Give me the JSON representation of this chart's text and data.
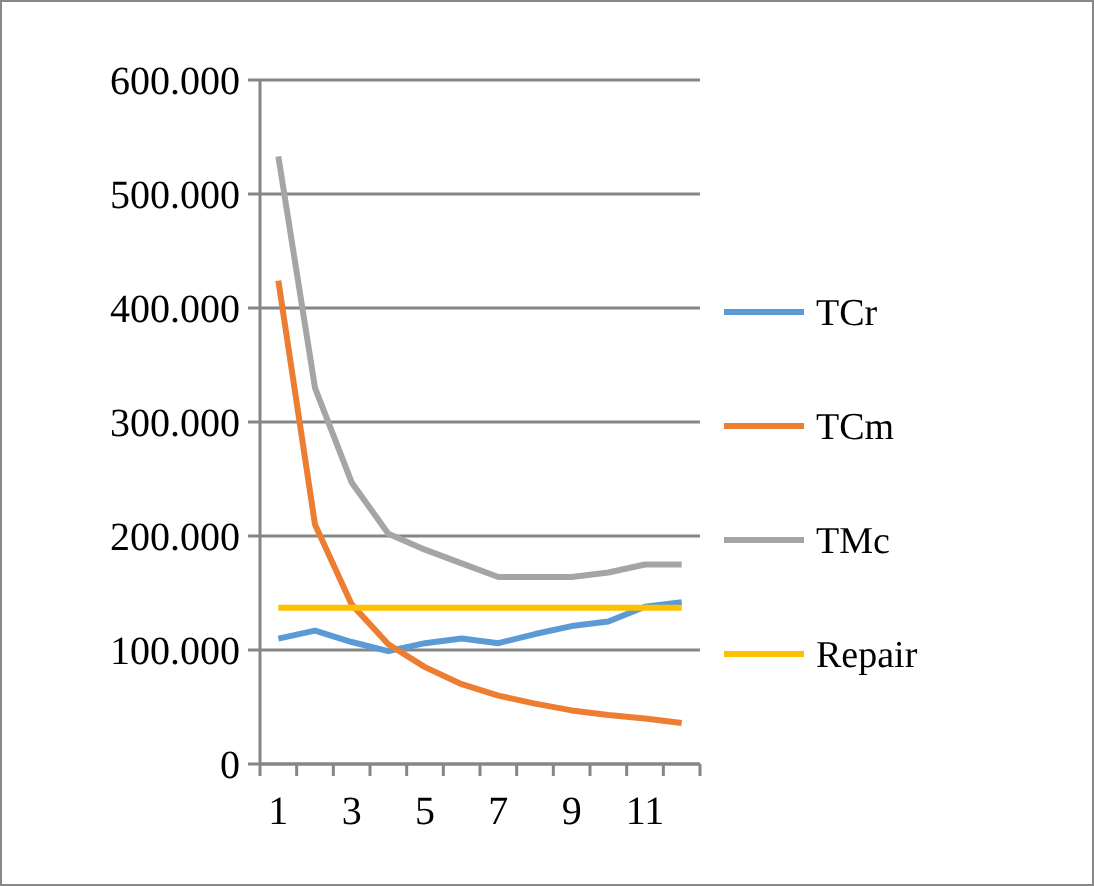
{
  "chart_data": {
    "type": "line",
    "categories": [
      "1",
      null,
      "3",
      null,
      "5",
      null,
      "7",
      null,
      "9",
      null,
      "11",
      null
    ],
    "series": [
      {
        "name": "TCr",
        "color": "#5b9bd5",
        "values": [
          110000,
          117000,
          107000,
          99000,
          106000,
          110000,
          106000,
          114000,
          121000,
          125000,
          138000,
          142000
        ]
      },
      {
        "name": "TCm",
        "color": "#ed7d31",
        "values": [
          424000,
          210000,
          140000,
          105000,
          85000,
          70000,
          60000,
          53000,
          47000,
          43000,
          40000,
          36000
        ]
      },
      {
        "name": "TMc",
        "color": "#a5a5a5",
        "values": [
          533000,
          330000,
          247000,
          202000,
          188000,
          176000,
          164000,
          164000,
          164000,
          168000,
          175000,
          175000
        ]
      },
      {
        "name": "Repair",
        "color": "#ffc000",
        "values": [
          137000,
          137000,
          137000,
          137000,
          137000,
          137000,
          137000,
          137000,
          137000,
          137000,
          137000,
          137000
        ]
      }
    ],
    "ylim": [
      0,
      600000
    ],
    "yticks": [
      0,
      {
        "value": 100000,
        "label": "100.000"
      },
      {
        "value": 200000,
        "label": "200.000"
      },
      {
        "value": 300000,
        "label": "300.000"
      },
      {
        "value": 400000,
        "label": "400.000"
      },
      {
        "value": 500000,
        "label": "500.000"
      },
      {
        "value": 600000,
        "label": "600.000"
      }
    ],
    "grid": "y",
    "legend": "right"
  }
}
